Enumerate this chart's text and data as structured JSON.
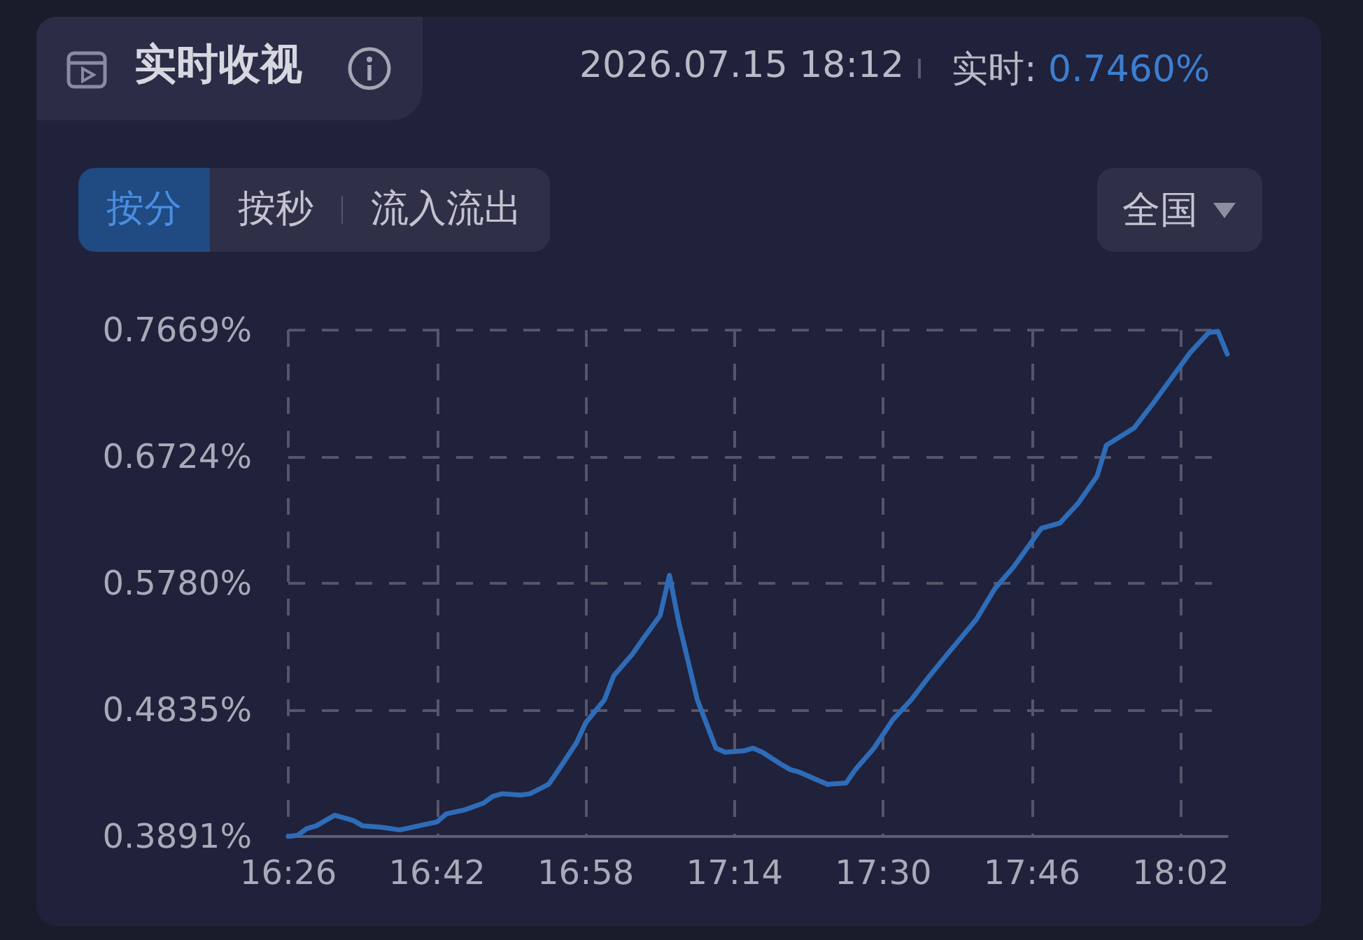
{
  "chart_data": {
    "type": "line",
    "title": "实时收视",
    "subtitle": "2026.07.15 18:12",
    "annotations": [
      "实时: 0.7460%",
      "按分",
      "按秒",
      "流入流出",
      "全国"
    ],
    "x": [
      16.4333,
      16.45,
      16.4667,
      16.4833,
      16.5167,
      16.55,
      16.5667,
      16.6,
      16.6333,
      16.6667,
      16.7,
      16.7167,
      16.75,
      16.7833,
      16.8,
      16.8167,
      16.85,
      16.8667,
      16.9,
      16.9167,
      16.95,
      16.9667,
      17,
      17.0167,
      17.05,
      17.0667,
      17.1,
      17.1167,
      17.1333,
      17.1667,
      17.2,
      17.2167,
      17.25,
      17.2667,
      17.2833,
      17.3167,
      17.3333,
      17.35,
      17.3833,
      17.4,
      17.4333,
      17.45,
      17.4833,
      17.5167,
      17.55,
      17.5833,
      17.6167,
      17.6667,
      17.7,
      17.7333,
      17.7833,
      17.8167,
      17.85,
      17.8833,
      17.9,
      17.95,
      17.9833,
      18.0167,
      18.05,
      18.0833,
      18.1,
      18.1167
    ],
    "series": [
      {
        "color": "#2e6cb8",
        "values": [
          0.3891,
          0.39,
          0.395,
          0.397,
          0.405,
          0.401,
          0.397,
          0.396,
          0.394,
          0.397,
          0.4,
          0.406,
          0.409,
          0.414,
          0.419,
          0.421,
          0.42,
          0.421,
          0.428,
          0.438,
          0.459,
          0.474,
          0.491,
          0.509,
          0.525,
          0.535,
          0.554,
          0.584,
          0.549,
          0.491,
          0.455,
          0.452,
          0.453,
          0.455,
          0.452,
          0.443,
          0.439,
          0.437,
          0.431,
          0.428,
          0.429,
          0.439,
          0.455,
          0.476,
          0.491,
          0.509,
          0.526,
          0.551,
          0.574,
          0.59,
          0.619,
          0.623,
          0.638,
          0.658,
          0.681,
          0.694,
          0.712,
          0.731,
          0.75,
          0.765,
          0.766,
          0.749
        ]
      }
    ],
    "xlim": [
      16.4333,
      18.1167
    ],
    "xticks": [
      {
        "value": 16.4333,
        "label": "16:26"
      },
      {
        "value": 16.7,
        "label": "16:42"
      },
      {
        "value": 16.9667,
        "label": "16:58"
      },
      {
        "value": 17.2333,
        "label": "17:14"
      },
      {
        "value": 17.5,
        "label": "17:30"
      },
      {
        "value": 17.7667,
        "label": "17:46"
      },
      {
        "value": 18.0333,
        "label": "18:02"
      }
    ],
    "ylim": [
      0.3891,
      0.7669
    ],
    "yticks": [
      {
        "value": 0.3891,
        "label": "0.3891%"
      },
      {
        "value": 0.4835,
        "label": "0.4835%"
      },
      {
        "value": 0.578,
        "label": "0.5780%"
      },
      {
        "value": 0.6724,
        "label": "0.6724%"
      },
      {
        "value": 0.7669,
        "label": "0.7669%"
      }
    ],
    "grid": true,
    "line_style": "solid",
    "marker": "none"
  }
}
